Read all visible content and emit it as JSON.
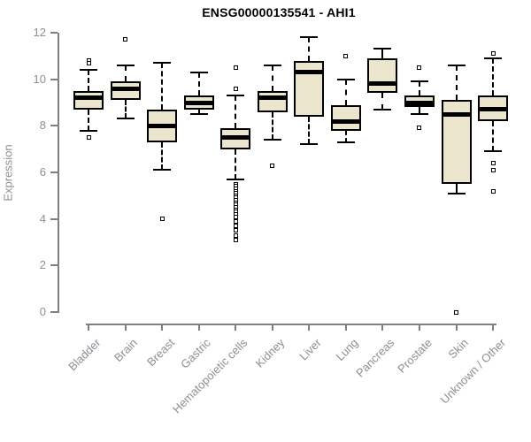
{
  "header": {
    "title": "ENSG00000135541 - AHI1"
  },
  "colors": {
    "box_fill": "#EBE5CE",
    "box_border": "#000000",
    "median": "#000000",
    "axis": "#808080",
    "tick_label": "#8E8E96",
    "title": "#000000",
    "background": "#FFFFFF"
  },
  "chart_data": {
    "type": "boxplot",
    "title": "ENSG00000135541 - AHI1",
    "xlabel": "",
    "ylabel": "Expression",
    "ylim": [
      0,
      12
    ],
    "yticks": [
      0,
      2,
      4,
      6,
      8,
      10,
      12
    ],
    "grid": false,
    "legend": "none",
    "categories": [
      "Bladder",
      "Brain",
      "Breast",
      "Gastric",
      "Hematopoietic cells",
      "Kidney",
      "Liver",
      "Lung",
      "Pancreas",
      "Prostate",
      "Skin",
      "Unknown / Other"
    ],
    "series": [
      {
        "name": "Bladder",
        "whisker_low": 7.8,
        "q1": 8.7,
        "median": 9.2,
        "q3": 9.5,
        "whisker_high": 10.4,
        "outliers": [
          10.8,
          10.7,
          7.5
        ]
      },
      {
        "name": "Brain",
        "whisker_low": 8.3,
        "q1": 9.1,
        "median": 9.6,
        "q3": 9.9,
        "whisker_high": 10.6,
        "outliers": [
          11.7
        ]
      },
      {
        "name": "Breast",
        "whisker_low": 6.1,
        "q1": 7.3,
        "median": 8.0,
        "q3": 8.7,
        "whisker_high": 10.7,
        "outliers": [
          4.0
        ]
      },
      {
        "name": "Gastric",
        "whisker_low": 8.5,
        "q1": 8.7,
        "median": 9.0,
        "q3": 9.3,
        "whisker_high": 10.3,
        "outliers": []
      },
      {
        "name": "Hematopoietic cells",
        "whisker_low": 5.7,
        "q1": 7.0,
        "median": 7.5,
        "q3": 7.9,
        "whisker_high": 9.3,
        "outliers": [
          10.5,
          9.6,
          5.5,
          5.4,
          5.3,
          5.2,
          5.1,
          5.0,
          4.9,
          4.8,
          4.7,
          4.6,
          4.5,
          4.4,
          4.3,
          4.2,
          4.1,
          3.9,
          3.7,
          3.5,
          3.3,
          3.1
        ]
      },
      {
        "name": "Kidney",
        "whisker_low": 7.4,
        "q1": 8.6,
        "median": 9.2,
        "q3": 9.5,
        "whisker_high": 10.6,
        "outliers": [
          6.3
        ]
      },
      {
        "name": "Liver",
        "whisker_low": 7.2,
        "q1": 8.4,
        "median": 10.3,
        "q3": 10.8,
        "whisker_high": 11.8,
        "outliers": []
      },
      {
        "name": "Lung",
        "whisker_low": 7.3,
        "q1": 7.8,
        "median": 8.2,
        "q3": 8.9,
        "whisker_high": 10.0,
        "outliers": [
          11.0
        ]
      },
      {
        "name": "Pancreas",
        "whisker_low": 8.7,
        "q1": 9.4,
        "median": 9.8,
        "q3": 10.9,
        "whisker_high": 11.3,
        "outliers": []
      },
      {
        "name": "Prostate",
        "whisker_low": 8.5,
        "q1": 8.8,
        "median": 9.0,
        "q3": 9.3,
        "whisker_high": 9.9,
        "outliers": [
          10.5,
          7.9
        ]
      },
      {
        "name": "Skin",
        "whisker_low": 5.1,
        "q1": 5.5,
        "median": 8.5,
        "q3": 9.1,
        "whisker_high": 10.6,
        "outliers": [
          0.0
        ]
      },
      {
        "name": "Unknown / Other",
        "whisker_low": 6.9,
        "q1": 8.2,
        "median": 8.7,
        "q3": 9.3,
        "whisker_high": 10.9,
        "outliers": [
          11.1,
          6.4,
          6.1,
          5.2
        ]
      }
    ]
  }
}
